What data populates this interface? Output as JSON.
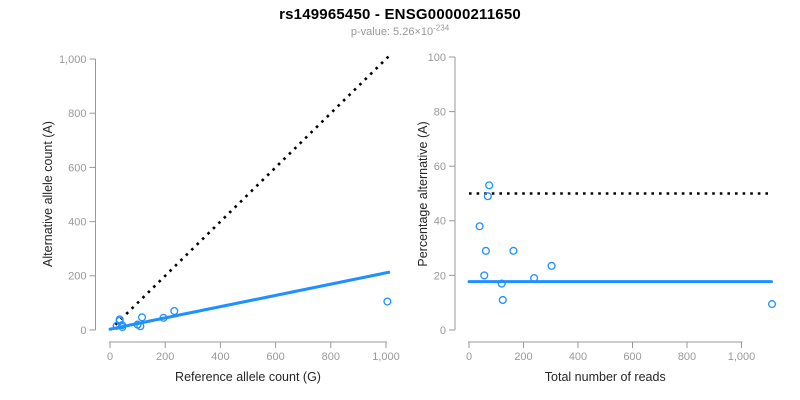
{
  "header": {
    "title": "rs149965450 - ENSG00000211650",
    "p_label": "p-value: 5.26×10",
    "p_exponent": "-234"
  },
  "colors": {
    "accent_blue": "#1E90FF",
    "line_black": "#000000",
    "axis_gray": "#999999",
    "tick_label_gray": "#999999",
    "axis_title_dark": "#262626",
    "title_black": "#000000",
    "subtitle_gray": "#999999",
    "background": "#ffffff"
  },
  "chart_data": [
    {
      "type": "scatter",
      "name": "allele-counts-scatter",
      "xlabel": "Reference allele count (G)",
      "ylabel": "Alternative allele count (A)",
      "xlim": [
        0,
        1000
      ],
      "ylim": [
        0,
        1000
      ],
      "grid": false,
      "xtick_values": [
        0,
        200,
        400,
        600,
        800,
        1000
      ],
      "xtick_labels": [
        "0",
        "200",
        "400",
        "600",
        "800",
        "1,000"
      ],
      "ytick_values": [
        0,
        200,
        400,
        600,
        800,
        1000
      ],
      "ytick_labels": [
        "0",
        "200",
        "400",
        "600",
        "800",
        "1,000"
      ],
      "points": [
        [
          24,
          15
        ],
        [
          35,
          34
        ],
        [
          35,
          39
        ],
        [
          44,
          18
        ],
        [
          45,
          11
        ],
        [
          100,
          20
        ],
        [
          110,
          14
        ],
        [
          116,
          47
        ],
        [
          194,
          45
        ],
        [
          233,
          70
        ],
        [
          1005,
          105
        ]
      ],
      "lines": [
        {
          "name": "identity-line",
          "style": "dotted",
          "color": "black",
          "x1": 0,
          "y1": 0,
          "x2": 1010,
          "y2": 1010
        },
        {
          "name": "regression-line",
          "style": "solid",
          "color": "blue",
          "x1": 0,
          "y1": 3,
          "x2": 1010,
          "y2": 213
        }
      ]
    },
    {
      "type": "scatter",
      "name": "percentage-alternative-scatter",
      "xlabel": "Total number of reads",
      "ylabel": "Percentage alternative (A)",
      "xlim": [
        0,
        1000
      ],
      "ylim": [
        0,
        100
      ],
      "grid": false,
      "xtick_values": [
        0,
        200,
        400,
        600,
        800,
        1000
      ],
      "xtick_labels": [
        "0",
        "200",
        "400",
        "600",
        "800",
        "1,000"
      ],
      "ytick_values": [
        0,
        20,
        40,
        60,
        80,
        100
      ],
      "ytick_labels": [
        "0",
        "20",
        "40",
        "60",
        "80",
        "100"
      ],
      "points": [
        [
          39,
          38
        ],
        [
          56,
          20
        ],
        [
          62,
          29
        ],
        [
          69,
          49
        ],
        [
          74,
          53
        ],
        [
          120,
          17
        ],
        [
          124,
          11
        ],
        [
          163,
          29
        ],
        [
          239,
          19
        ],
        [
          303,
          23.5
        ],
        [
          1112,
          9.5
        ]
      ],
      "lines": [
        {
          "name": "reference-50pct-line",
          "style": "dotted",
          "color": "black",
          "x1": 0,
          "y1": 50,
          "x2": 1110,
          "y2": 50
        },
        {
          "name": "mean-percentage-line",
          "style": "solid",
          "color": "blue",
          "x1": 0,
          "y1": 17.7,
          "x2": 1110,
          "y2": 17.7
        }
      ]
    }
  ]
}
